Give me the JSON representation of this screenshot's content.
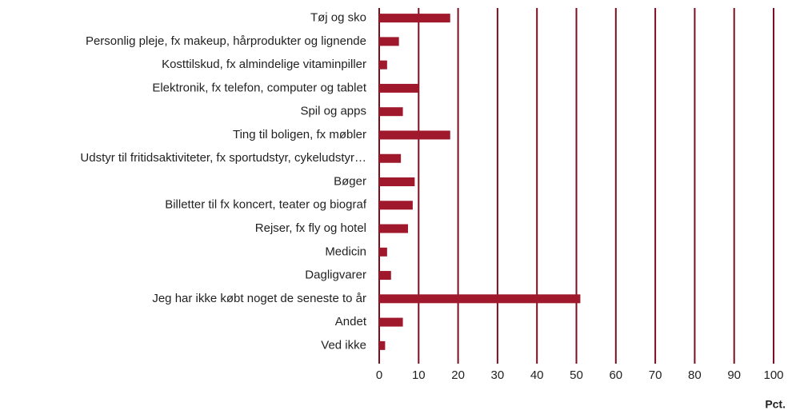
{
  "chart_data": {
    "type": "hbar",
    "categories": [
      "Tøj og sko",
      "Personlig pleje, fx makeup, hårprodukter og lignende",
      "Kosttilskud, fx almindelige vitaminpiller",
      "Elektronik, fx telefon, computer og tablet",
      "Spil og apps",
      "Ting til boligen, fx møbler",
      "Udstyr til fritidsaktiviteter, fx sportudstyr, cykeludstyr…",
      "Bøger",
      "Billetter til fx koncert, teater og biograf",
      "Rejser, fx fly og hotel",
      "Medicin",
      "Dagligvarer",
      "Jeg har ikke købt noget de seneste to år",
      "Andet",
      "Ved ikke"
    ],
    "values": [
      18,
      5,
      2,
      10,
      6,
      18,
      5.5,
      9,
      8.5,
      7.3,
      2,
      3,
      51,
      6,
      1.5
    ],
    "color": "#a0182b",
    "grid_color": "#7a0f1f",
    "x_label": "Pct.",
    "xlim": [
      0,
      100
    ],
    "xticks": [
      0,
      10,
      20,
      30,
      40,
      50,
      60,
      70,
      80,
      90,
      100
    ],
    "grid": true
  }
}
